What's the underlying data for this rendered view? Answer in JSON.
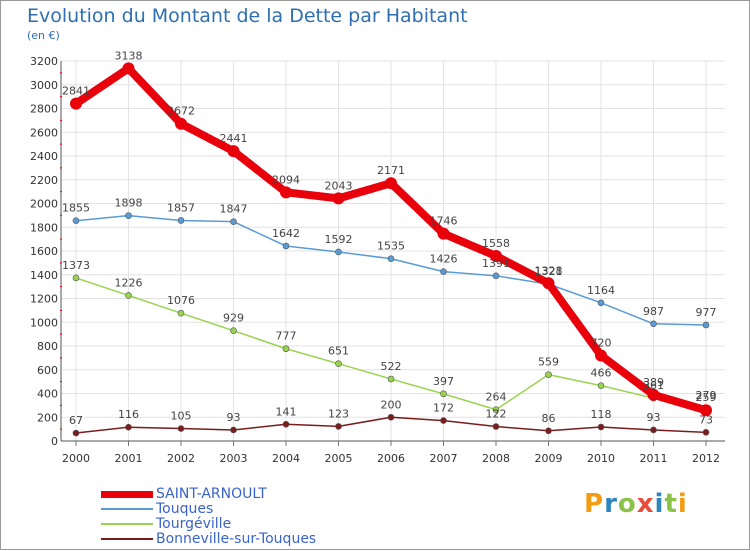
{
  "title": "Evolution du Montant de la Dette par Habitant",
  "subtitle": "(en €)",
  "logo_text": "Proxiti",
  "chart_data": {
    "type": "line",
    "title": "Evolution du Montant de la Dette par Habitant",
    "ylabel": "(en €)",
    "xlabel": "",
    "ylim": [
      0,
      3200
    ],
    "yticks": [
      0,
      200,
      400,
      600,
      800,
      1000,
      1200,
      1400,
      1600,
      1800,
      2000,
      2200,
      2400,
      2600,
      2800,
      3000,
      3200
    ],
    "grid": true,
    "legend_position": "bottom",
    "x": [
      "2000",
      "2001",
      "2002",
      "2003",
      "2004",
      "2005",
      "2006",
      "2007",
      "2008",
      "2009",
      "2010",
      "2011",
      "2012"
    ],
    "series": [
      {
        "name": "SAINT-ARNOULT",
        "color": "#e8000b",
        "values": [
          2841,
          3138,
          2672,
          2441,
          2094,
          2043,
          2171,
          1746,
          1558,
          1328,
          720,
          389,
          259
        ]
      },
      {
        "name": "Touques",
        "color": "#5b9bd5",
        "values": [
          1855,
          1898,
          1857,
          1847,
          1642,
          1592,
          1535,
          1426,
          1391,
          1321,
          1164,
          987,
          977
        ]
      },
      {
        "name": "Tourgéville",
        "color": "#99d34f",
        "values": [
          1373,
          1226,
          1076,
          929,
          777,
          651,
          522,
          397,
          264,
          559,
          466,
          361,
          279
        ]
      },
      {
        "name": "Bonneville-sur-Touques",
        "color": "#7b1c1c",
        "values": [
          67,
          116,
          105,
          93,
          141,
          123,
          200,
          172,
          122,
          86,
          118,
          93,
          73
        ]
      }
    ]
  }
}
